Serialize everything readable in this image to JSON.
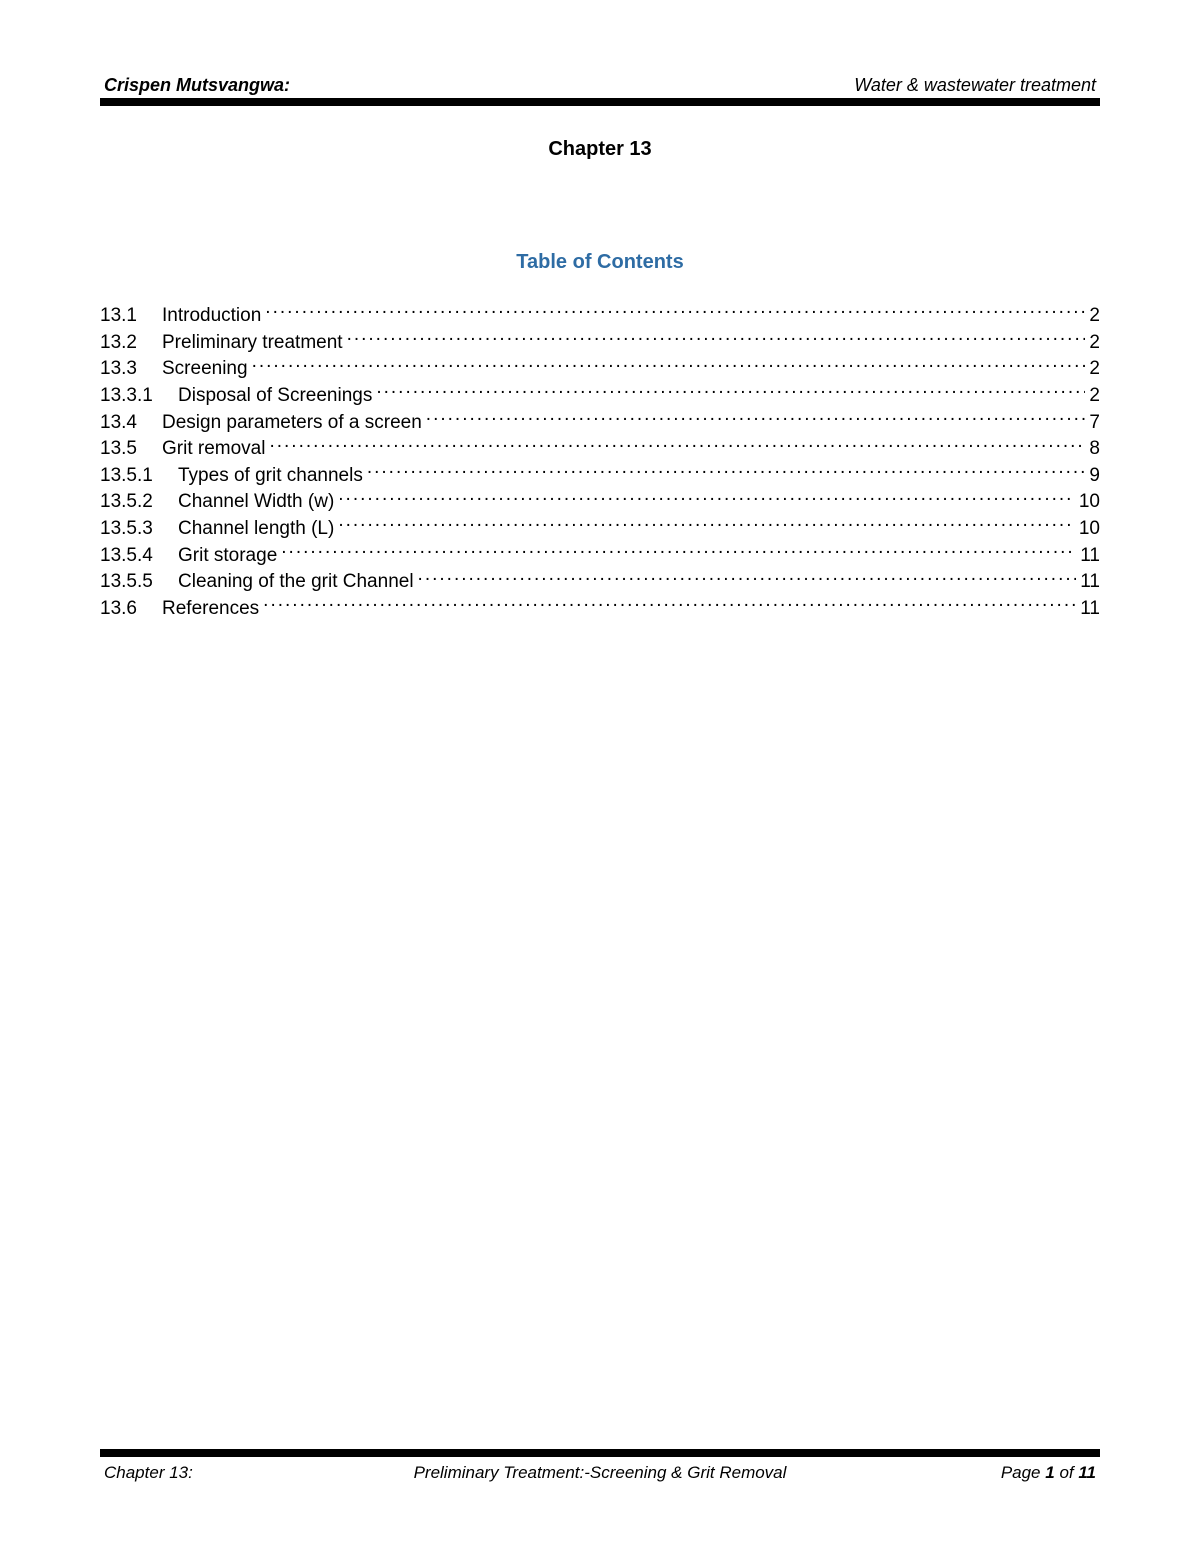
{
  "header": {
    "author": "Crispen Mutsvangwa:",
    "subject": "Water & wastewater treatment"
  },
  "chapter_title": "Chapter 13",
  "toc_title": "Table of Contents",
  "toc_title_color": "#2e6ca4",
  "toc": [
    {
      "num": "13.1",
      "label": "Introduction",
      "page": "2",
      "level": 1
    },
    {
      "num": "13.2",
      "label": "Preliminary treatment",
      "page": "2",
      "level": 1
    },
    {
      "num": "13.3",
      "label": "Screening",
      "page": "2",
      "level": 1
    },
    {
      "num": "13.3.1",
      "label": "Disposal of Screenings",
      "page": "2",
      "level": 2
    },
    {
      "num": "13.4",
      "label": "Design parameters of a screen",
      "page": "7",
      "level": 1
    },
    {
      "num": "13.5",
      "label": "Grit removal",
      "page": "8",
      "level": 1
    },
    {
      "num": "13.5.1",
      "label": "Types of grit channels",
      "page": "9",
      "level": 2
    },
    {
      "num": "13.5.2",
      "label": "Channel Width (w)",
      "page": "10",
      "level": 2
    },
    {
      "num": "13.5.3",
      "label": "Channel length (L)",
      "page": "10",
      "level": 2
    },
    {
      "num": "13.5.4",
      "label": "Grit storage",
      "page": "11",
      "level": 2
    },
    {
      "num": "13.5.5",
      "label": "Cleaning of the grit Channel",
      "page": "11",
      "level": 2
    },
    {
      "num": "13.6",
      "label": "References",
      "page": "11",
      "level": 1
    }
  ],
  "footer": {
    "left": "Chapter 13:",
    "center": "Preliminary Treatment:-Screening & Grit Removal",
    "right_prefix": "Page ",
    "right_page": "1",
    "right_mid": " of ",
    "right_total": "11"
  },
  "colors": {
    "text": "#000000",
    "rule": "#000000",
    "background": "#ffffff"
  },
  "fontsize": {
    "header": 18,
    "chapter_title": 20,
    "toc_title": 20,
    "toc_body": 19,
    "footer": 17
  }
}
